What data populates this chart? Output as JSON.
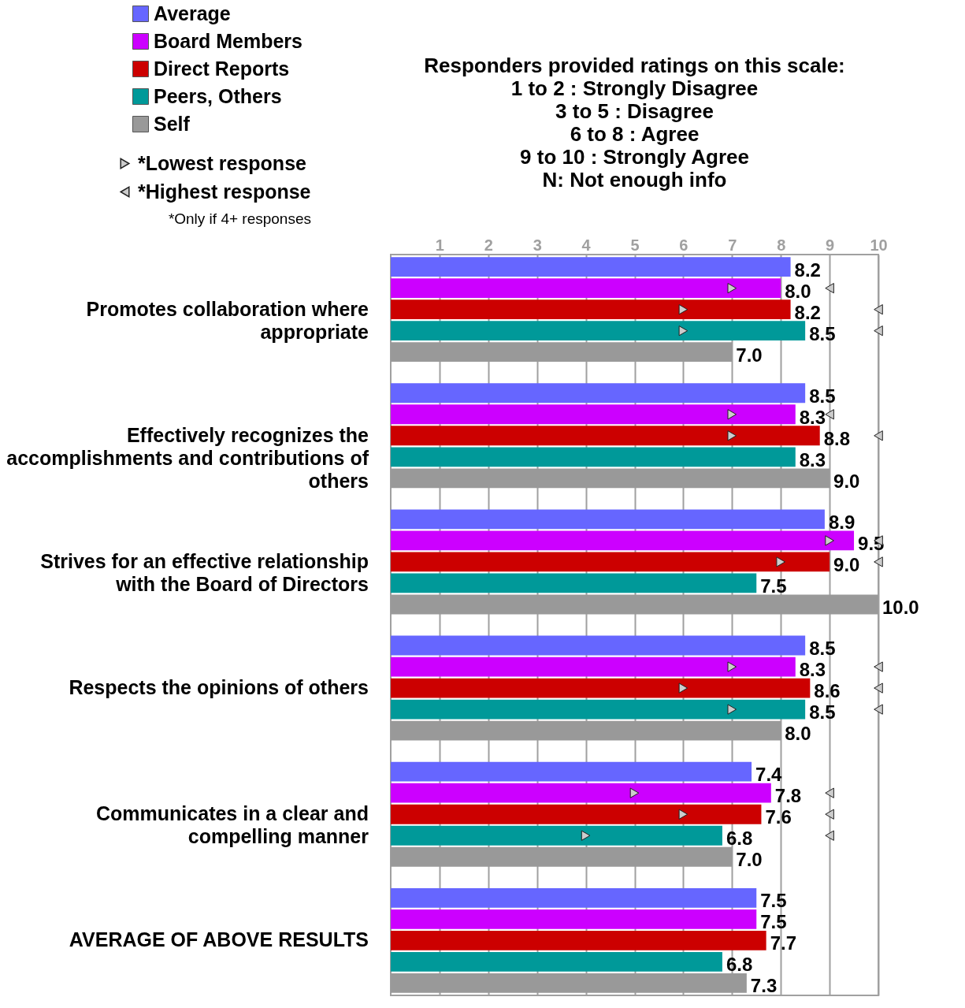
{
  "chart_data": {
    "type": "bar",
    "orientation": "horizontal",
    "categories": [
      "Promotes collaboration where appropriate",
      "Effectively recognizes the accomplishments and contributions of others",
      "Strives for an effective relationship with the Board of Directors",
      "Respects the opinions of others",
      "Communicates in a clear and compelling manner",
      "AVERAGE OF ABOVE RESULTS"
    ],
    "series": [
      {
        "name": "Average",
        "color": "#6666ff",
        "values": [
          8.2,
          8.5,
          8.9,
          8.5,
          7.4,
          7.5
        ],
        "value_labels": [
          "8.2",
          "8.5",
          "8.9",
          "8.5",
          "7.4",
          "7.5"
        ]
      },
      {
        "name": "Board Members",
        "color": "#cc00ff",
        "values": [
          8.0,
          8.3,
          9.5,
          8.3,
          7.8,
          7.5
        ],
        "value_labels": [
          "8.0",
          "8.3",
          "9.5",
          "8.3",
          "7.8",
          "7.5"
        ]
      },
      {
        "name": "Direct Reports",
        "color": "#cc0000",
        "values": [
          8.2,
          8.8,
          9.0,
          8.6,
          7.6,
          7.7
        ],
        "value_labels": [
          "8.2",
          "8.8",
          "9.0",
          "8.6",
          "7.6",
          "7.7"
        ]
      },
      {
        "name": "Peers, Others",
        "color": "#009999",
        "values": [
          8.5,
          8.3,
          7.5,
          8.5,
          6.8,
          6.8
        ],
        "value_labels": [
          "8.5",
          "8.3",
          "7.5",
          "8.5",
          "6.8",
          "6.8"
        ]
      },
      {
        "name": "Self",
        "color": "#999999",
        "values": [
          7.0,
          9.0,
          10.0,
          8.0,
          7.0,
          7.3
        ],
        "value_labels": [
          "7.0",
          "9.0",
          "10.0",
          "8.0",
          "7.0",
          "7.3"
        ]
      },
      {
        "type": "scatter",
        "name": "*Lowest response",
        "color": "#cccccc",
        "x": [
          "Promotes collaboration where appropriate",
          "Promotes collaboration where appropriate",
          "Promotes collaboration where appropriate",
          "Effectively recognizes the accomplishments and contributions of others",
          "Effectively recognizes the accomplishments and contributions of others",
          "Strives for an effective relationship with the Board of Directors",
          "Strives for an effective relationship with the Board of Directors",
          "Respects the opinions of others",
          "Respects the opinions of others",
          "Respects the opinions of others",
          "Communicates in a clear and compelling manner",
          "Communicates in a clear and compelling manner",
          "Communicates in a clear and compelling manner"
        ],
        "values": [
          7,
          6,
          6,
          7,
          7,
          9,
          8,
          7,
          6,
          7,
          5,
          6,
          4
        ]
      },
      {
        "type": "scatter",
        "name": "*Highest response",
        "color": "#cccccc",
        "x": [
          "Promotes collaboration where appropriate",
          "Promotes collaboration where appropriate",
          "Promotes collaboration where appropriate",
          "Effectively recognizes the accomplishments and contributions of others",
          "Effectively recognizes the accomplishments and contributions of others",
          "Strives for an effective relationship with the Board of Directors",
          "Strives for an effective relationship with the Board of Directors",
          "Respects the opinions of others",
          "Respects the opinions of others",
          "Respects the opinions of others",
          "Communicates in a clear and compelling manner",
          "Communicates in a clear and compelling manner",
          "Communicates in a clear and compelling manner"
        ],
        "values": [
          9,
          10,
          10,
          9,
          10,
          10,
          10,
          10,
          10,
          10,
          9,
          9,
          9
        ]
      }
    ],
    "xlim": [
      0,
      10
    ],
    "xticks": [
      1,
      2,
      3,
      4,
      5,
      6,
      7,
      8,
      9,
      10
    ],
    "grid": "x",
    "legend": "top left",
    "marker": "triangle",
    "annotations": [
      "*Only if 4+ responses",
      "Responders provided ratings on this scale:",
      "1 to 2 : Strongly Disagree",
      "3 to 5 : Disagree",
      "6 to 8 : Agree",
      "9 to 10 : Strongly Agree",
      "N: Not enough info"
    ]
  }
}
